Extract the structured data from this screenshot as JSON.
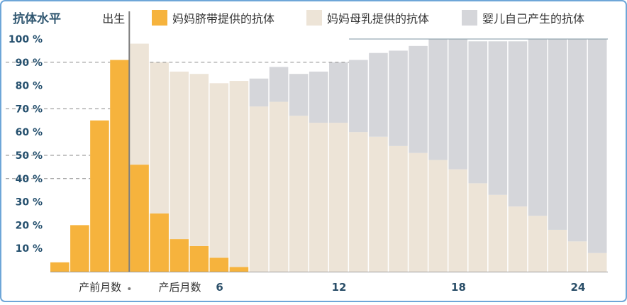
{
  "chart_data": {
    "type": "bar",
    "title": "",
    "ylabel": "抗体水平",
    "ylim": [
      0,
      100
    ],
    "ytick_labels": [
      "10 %",
      "20 %",
      "30 %",
      "40 %",
      "50 %",
      "60 %",
      "70 %",
      "80 %",
      "90 %",
      "100 %"
    ],
    "ytick_values": [
      10,
      20,
      30,
      40,
      50,
      60,
      70,
      80,
      90,
      100
    ],
    "x_labels": [
      {
        "text": "产前月数",
        "between": [
          1,
          3
        ]
      },
      {
        "text": "产后月数",
        "between": [
          5,
          7
        ]
      },
      {
        "text": "6",
        "at": 9
      },
      {
        "text": "12",
        "at": 15
      },
      {
        "text": "18",
        "at": 21
      },
      {
        "text": "24",
        "at": 27
      }
    ],
    "birth_label": "出生",
    "birth_index": 4,
    "legend_position": "top",
    "series": [
      {
        "name": "妈妈脐带提供的抗体",
        "color": "#f6b33d",
        "values": [
          4,
          20,
          65,
          91,
          46,
          25,
          14,
          11,
          6,
          2,
          0,
          0,
          0,
          0,
          0,
          0,
          0,
          0,
          0,
          0,
          0,
          0,
          0,
          0,
          0,
          0,
          0,
          0
        ]
      },
      {
        "name": "妈妈母乳提供的抗体",
        "color": "#ede4d7",
        "values": [
          0,
          0,
          0,
          0,
          52,
          65,
          72,
          74,
          75,
          80,
          71,
          73,
          67,
          64,
          64,
          60,
          58,
          54,
          51,
          48,
          44,
          38,
          33,
          28,
          24,
          18,
          13,
          8
        ]
      },
      {
        "name": "婴儿自己产生的抗体",
        "color": "#d5d6da",
        "values": [
          0,
          0,
          0,
          0,
          0,
          0,
          0,
          0,
          0,
          0,
          12,
          15,
          18,
          22,
          26,
          31,
          36,
          41,
          46,
          52,
          56,
          61,
          66,
          71,
          76,
          82,
          87,
          92
        ]
      }
    ],
    "grid": false,
    "reference_lines": [
      {
        "from_x": "y-axis",
        "to_x": "bar-3",
        "y": 90,
        "style": "dashed"
      },
      {
        "from_x": "y-axis",
        "to_x": "bar-3",
        "y": 70,
        "style": "dashed"
      },
      {
        "from_x": "y-axis",
        "to_x": "bar-2",
        "y": 50,
        "style": "dashed"
      },
      {
        "from_x": "y-axis",
        "to_x": "bar-2",
        "y": 40,
        "style": "dashed"
      },
      {
        "from_x": "bar-5",
        "to_x": "bar-15",
        "y": 90,
        "style": "dashed"
      },
      {
        "from_x": "bar-15",
        "to_x": "end",
        "y": 100,
        "style": "solid"
      }
    ],
    "colors": {
      "axis_label": "#2f5670",
      "tick_label": "#25506e",
      "frame": "#6ea6d8",
      "birth_line": "#7d7d7d",
      "baseline": "#9a9a9a"
    }
  }
}
